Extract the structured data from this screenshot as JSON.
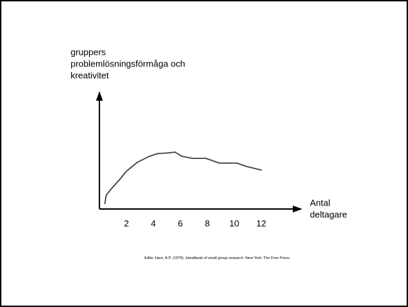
{
  "chart_data": {
    "type": "line",
    "ylabel": [
      "gruppers",
      "problemlösningsförmåga och",
      "kreativitet"
    ],
    "xlabel": [
      "Antal",
      "deltagare"
    ],
    "x": [
      0.4,
      0.5,
      0.9,
      1.5,
      2.0,
      2.8,
      3.6,
      4.3,
      5.1,
      5.6,
      6.1,
      6.9,
      7.9,
      8.9,
      10.2,
      10.9,
      12.0
    ],
    "series": [
      {
        "color": "#444444",
        "values": [
          4.7,
          11.8,
          17.6,
          25.3,
          32.4,
          40.0,
          44.7,
          47.6,
          48.2,
          48.8,
          45.3,
          43.5,
          43.5,
          39.4,
          39.4,
          36.5,
          33.5
        ]
      }
    ],
    "xlim": [
      0,
      15
    ],
    "ylim": [
      0,
      100
    ],
    "xticks": [
      2,
      4,
      6,
      8,
      10,
      12
    ],
    "source": {
      "pre": "Källa: Hare, A.P. (1976). ",
      "title": "Handbook of small group research",
      "post": ". New York: The Free Press."
    }
  }
}
